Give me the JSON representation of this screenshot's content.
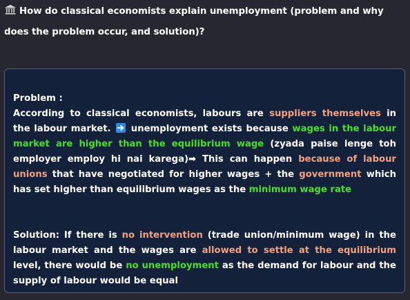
{
  "question": {
    "text": "How do classical economists explain unemployment (problem and why does the problem occur, and solution)?",
    "icon": "bank-icon"
  },
  "answer": {
    "problem_heading": "Problem :",
    "problem": {
      "t1": "According to classical economists, labours are ",
      "h1": "suppliers themselves",
      "t2": " in the labour market. ",
      "arrow_icon": "right-arrow-emoji-icon",
      "t3": " unemployment exists because ",
      "h2": "wages in the labour market are higher than the equilibrium wage",
      "t4": " (zyada paise lenge toh employer employ hi nai karega)",
      "arrow2": "➡",
      "t5": " This can happen ",
      "h3": "because of labour unions",
      "t6": " that have negotiated for higher wages + the ",
      "h4": "government",
      "t7": " which has set higher than equilibrium wages as the ",
      "h5": "minimum wage rate"
    },
    "solution": {
      "t1": "Solution: If there is ",
      "h1": "no intervention",
      "t2": " (trade union/minimum wage) in the labour market and the wages are ",
      "h2": "allowed to settle at the equilibrium",
      "t3": " level, there would be ",
      "h3": "no unemployment",
      "t4": " as the demand for labour and the supply of labour would be equal"
    },
    "colors": {
      "orange_highlight": "#f5a07f",
      "green_highlight": "#44e022",
      "card_background": "#14213b",
      "page_background": "#262730"
    }
  }
}
